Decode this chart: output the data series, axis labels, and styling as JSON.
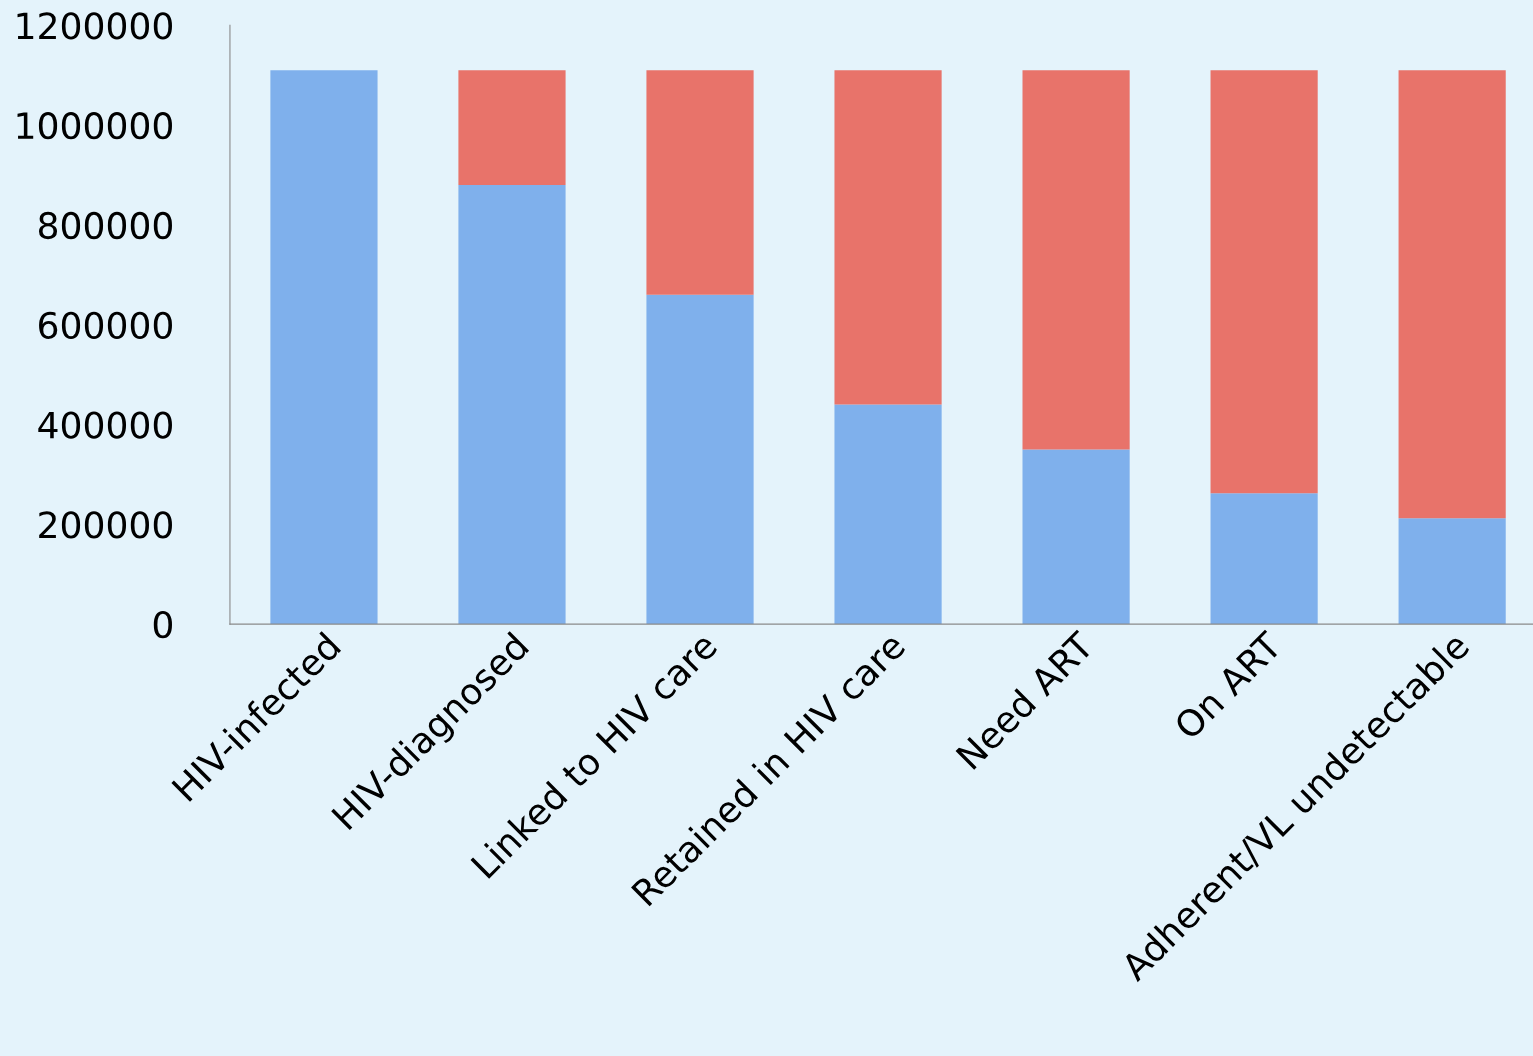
{
  "chart_data": {
    "type": "bar",
    "stacked": true,
    "categories": [
      "HIV-infected",
      "HIV-diagnosed",
      "Linked to HIV care",
      "Retained in HIV care",
      "Need ART",
      "On ART",
      "Adherent/VL undetectable"
    ],
    "series": [
      {
        "color": "#7fb0ec",
        "values": [
          1110000,
          880000,
          660000,
          440000,
          350000,
          262000,
          212000
        ]
      },
      {
        "color": "#e8736a",
        "values": [
          0,
          230000,
          450000,
          670000,
          760000,
          848000,
          898000
        ]
      }
    ],
    "ylim": [
      0,
      1200000
    ],
    "yticks": [
      0,
      200000,
      400000,
      600000,
      800000,
      1000000,
      1200000
    ],
    "grid": false,
    "legend": false
  }
}
